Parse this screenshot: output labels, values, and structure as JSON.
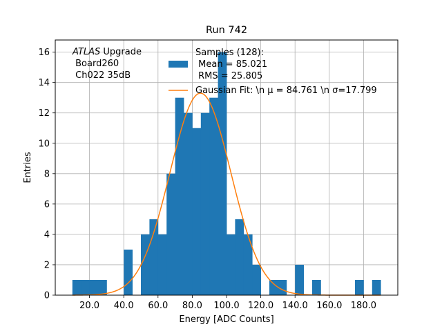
{
  "chart_data": {
    "type": "bar",
    "title": "Run 742",
    "xlabel": "Energy [ADC Counts]",
    "ylabel": "Entries",
    "xlim": [
      0,
      200
    ],
    "ylim": [
      0,
      16.8
    ],
    "grid": true,
    "xticks": [
      20,
      40,
      60,
      80,
      100,
      120,
      140,
      160,
      180
    ],
    "xtick_labels": [
      "20.0",
      "40.0",
      "60.0",
      "80.0",
      "100.0",
      "120.0",
      "140.0",
      "160.0",
      "180.0"
    ],
    "yticks": [
      0,
      2,
      4,
      6,
      8,
      10,
      12,
      14,
      16
    ],
    "ytick_labels": [
      "0",
      "2",
      "4",
      "6",
      "8",
      "10",
      "12",
      "14",
      "16"
    ],
    "bin_width": 5,
    "bin_left_edges": [
      10,
      15,
      20,
      25,
      30,
      35,
      40,
      45,
      50,
      55,
      60,
      65,
      70,
      75,
      80,
      85,
      90,
      95,
      100,
      105,
      110,
      115,
      120,
      125,
      130,
      135,
      140,
      145,
      150,
      155,
      160,
      165,
      170,
      175,
      180,
      185
    ],
    "values": [
      1,
      1,
      1,
      1,
      0,
      0,
      3,
      0,
      4,
      5,
      4,
      8,
      13,
      12,
      11,
      12,
      13,
      16,
      4,
      5,
      4,
      2,
      0,
      1,
      1,
      0,
      2,
      0,
      1,
      0,
      0,
      0,
      0,
      1,
      0,
      1
    ],
    "series": [
      {
        "name": "Samples (128):\n Mean = 85.021\n RMS = 25.805",
        "type": "histogram",
        "color": "#1f77b4"
      },
      {
        "name": "Gaussian Fit: \\n μ = 84.761 \\n σ=17.799",
        "type": "line",
        "color": "#ff7f0e",
        "mu": 84.761,
        "sigma": 17.799,
        "peak": 13.3,
        "x_range": [
          10,
          190
        ]
      }
    ],
    "legend": {
      "placement": "upper-right",
      "hist_lines": [
        "Samples (128):",
        " Mean = 85.021",
        " RMS = 25.805"
      ],
      "fit_label": "Gaussian Fit: \\n μ = 84.761 \\n σ=17.799"
    },
    "annotation": {
      "atlas": "ATLAS",
      "upgrade": " Upgrade",
      "line2": " Board260",
      "line3": " Ch022 35dB"
    }
  }
}
